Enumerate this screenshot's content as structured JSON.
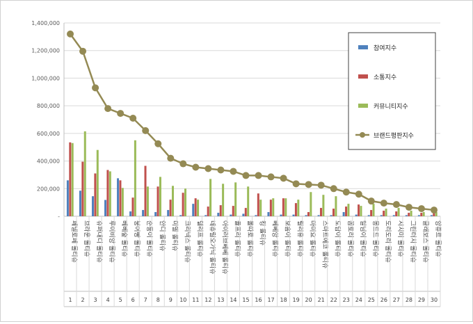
{
  "chart_data": {
    "type": "bar",
    "categories": [
      "페넬로페 롤티슈",
      "브라운 롤티슈",
      "슈퍼대디 롤티슈",
      "루이비앙 롤티슈",
      "베베숲 롤티슈",
      "붕어빵 롤티슈",
      "순둥이 롤티슈",
      "안디 롤티슈",
      "미엘 롤티슈",
      "크리넥스 롤티슈",
      "델리프 롤티슈",
      "네츄럴오가닉 롤티슈",
      "아이러브베베 롤티슈",
      "율프리 롤티슈",
      "몰따로 롤티슈",
      "킹 롤티슈",
      "베베앙 롤티슈",
      "보솜이 롤티슈",
      "릴리유 롤티슈",
      "마미요 롤티슈",
      "스마트에코 롤티슈",
      "도담이 롤티슈",
      "꼼토리 롤티슈",
      "달님이 롤티슈",
      "몽드드 롤티슈",
      "도리도리 롤티슈",
      "시치미 롤티슈",
      "그린터치 롤티슈",
      "클래보스 롤티슈",
      "앙쥬르 롤티슈"
    ],
    "index_labels": [
      "1",
      "2",
      "3",
      "4",
      "5",
      "6",
      "7",
      "8",
      "9",
      "10",
      "11",
      "12",
      "13",
      "14",
      "15",
      "16",
      "17",
      "18",
      "19",
      "20",
      "21",
      "22",
      "23",
      "24",
      "25",
      "26",
      "27",
      "28",
      "29",
      "30"
    ],
    "series": [
      {
        "name": "참여지수",
        "color": "#4f81bd",
        "values": [
          260000,
          185000,
          145000,
          118000,
          275000,
          35000,
          45000,
          30000,
          45000,
          8000,
          90000,
          8000,
          25000,
          12000,
          18000,
          8000,
          30000,
          12000,
          12000,
          8000,
          8000,
          8000,
          30000,
          12000,
          8000,
          8000,
          8000,
          8000,
          8000,
          8000
        ]
      },
      {
        "name": "소통지수",
        "color": "#c0504d",
        "values": [
          535000,
          395000,
          310000,
          335000,
          260000,
          135000,
          365000,
          215000,
          120000,
          170000,
          130000,
          70000,
          80000,
          75000,
          60000,
          165000,
          120000,
          130000,
          95000,
          30000,
          60000,
          55000,
          70000,
          85000,
          45000,
          40000,
          35000,
          25000,
          25000,
          35000
        ]
      },
      {
        "name": "커뮤니티지수",
        "color": "#9bbb59",
        "values": [
          530000,
          615000,
          480000,
          325000,
          205000,
          550000,
          215000,
          285000,
          220000,
          200000,
          120000,
          270000,
          235000,
          245000,
          215000,
          120000,
          130000,
          130000,
          120000,
          175000,
          155000,
          145000,
          90000,
          75000,
          90000,
          55000,
          60000,
          40000,
          30000,
          30000
        ]
      },
      {
        "name": "브랜드평판지수",
        "color": "#948a54",
        "type": "line",
        "values": [
          1320000,
          1195000,
          930000,
          780000,
          745000,
          710000,
          620000,
          525000,
          420000,
          380000,
          355000,
          345000,
          335000,
          325000,
          295000,
          295000,
          285000,
          275000,
          235000,
          230000,
          225000,
          200000,
          175000,
          160000,
          110000,
          95000,
          85000,
          65000,
          55000,
          45000
        ]
      }
    ],
    "y_ticks": [
      "-",
      "200,000",
      "400,000",
      "600,000",
      "800,000",
      "1,000,000",
      "1,200,000",
      "1,400,000"
    ],
    "ylim": [
      0,
      1400000
    ],
    "grid": true,
    "legend": "right",
    "title": "",
    "xlabel": "",
    "ylabel": ""
  }
}
